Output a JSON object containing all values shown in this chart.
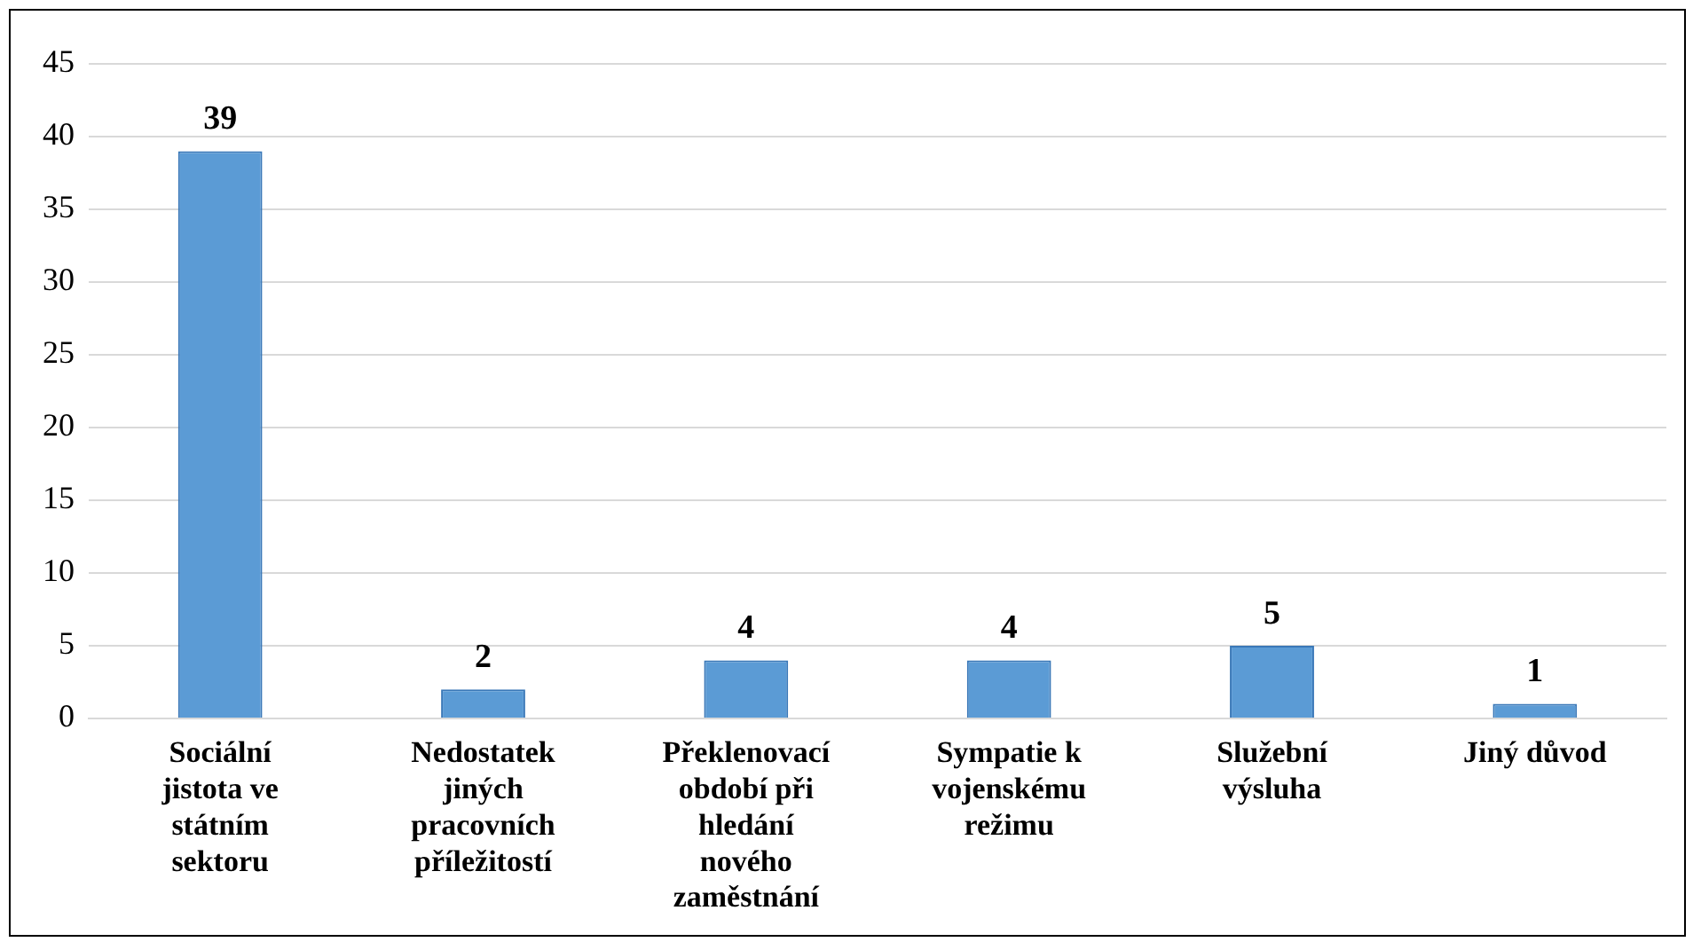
{
  "chart_data": {
    "type": "bar",
    "categories": [
      "Sociální jistota ve státním sektoru",
      "Nedostatek jiných pracovních příležitostí",
      "Překlenovací období při hledání nového zaměstnání",
      "Sympatie k vojenskému režimu",
      "Služební výsluha",
      "Jiný důvod"
    ],
    "values": [
      39,
      2,
      4,
      4,
      5,
      1
    ],
    "color": "#5b9bd5",
    "ylim": [
      0,
      45
    ],
    "yticks": [
      0,
      5,
      10,
      15,
      20,
      25,
      30,
      35,
      40,
      45
    ],
    "grid": "y",
    "data_labels": true
  }
}
